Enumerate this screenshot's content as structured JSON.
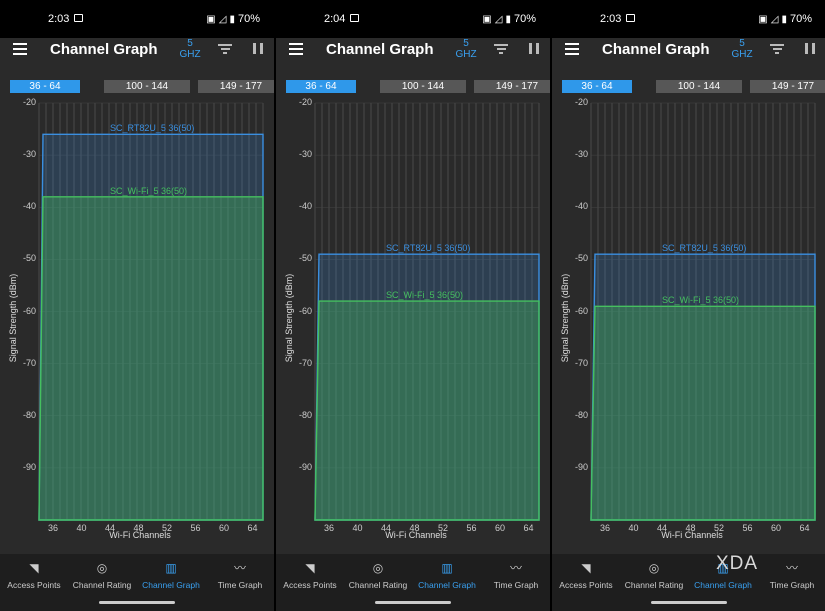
{
  "panels": [
    {
      "status": {
        "time": "2:03",
        "battery": "70%"
      },
      "appbar": {
        "title": "Channel Graph",
        "band_value": "5",
        "band_unit": "GHZ"
      },
      "tabs": [
        {
          "label": "36 - 64",
          "active": true
        },
        {
          "label": "100 - 144",
          "active": false
        },
        {
          "label": "149 - 177",
          "active": false
        }
      ],
      "chart_data": {
        "type": "area",
        "xlabel": "Wi-Fi Channels",
        "ylabel": "Signal Strength (dBm)",
        "x_ticks": [
          "36",
          "40",
          "44",
          "48",
          "52",
          "56",
          "60",
          "64"
        ],
        "y_ticks": [
          "-20",
          "-30",
          "-40",
          "-50",
          "-60",
          "-70",
          "-80",
          "-90"
        ],
        "ylim": [
          -100,
          -20
        ],
        "series": [
          {
            "name": "SC_RT82U_5 36(50)",
            "value": -26,
            "color": "#3a8fe0"
          },
          {
            "name": "SC_Wi-Fi_5 36(50)",
            "value": -38,
            "color": "#45c05f"
          }
        ]
      },
      "nav": [
        {
          "label": "Access Points",
          "icon": "wifi-icon",
          "active": false
        },
        {
          "label": "Channel Rating",
          "icon": "signal-rating-icon",
          "active": false
        },
        {
          "label": "Channel Graph",
          "icon": "bar-chart-icon",
          "active": true
        },
        {
          "label": "Time Graph",
          "icon": "line-graph-icon",
          "active": false
        }
      ]
    },
    {
      "status": {
        "time": "2:04",
        "battery": "70%"
      },
      "appbar": {
        "title": "Channel Graph",
        "band_value": "5",
        "band_unit": "GHZ"
      },
      "tabs": [
        {
          "label": "36 - 64",
          "active": true
        },
        {
          "label": "100 - 144",
          "active": false
        },
        {
          "label": "149 - 177",
          "active": false
        }
      ],
      "chart_data": {
        "type": "area",
        "xlabel": "Wi-Fi Channels",
        "ylabel": "Signal Strength (dBm)",
        "x_ticks": [
          "36",
          "40",
          "44",
          "48",
          "52",
          "56",
          "60",
          "64"
        ],
        "y_ticks": [
          "-20",
          "-30",
          "-40",
          "-50",
          "-60",
          "-70",
          "-80",
          "-90"
        ],
        "ylim": [
          -100,
          -20
        ],
        "series": [
          {
            "name": "SC_RT82U_5 36(50)",
            "value": -49,
            "color": "#3a8fe0"
          },
          {
            "name": "SC_Wi-Fi_5 36(50)",
            "value": -58,
            "color": "#45c05f"
          }
        ]
      },
      "nav": [
        {
          "label": "Access Points",
          "icon": "wifi-icon",
          "active": false
        },
        {
          "label": "Channel Rating",
          "icon": "signal-rating-icon",
          "active": false
        },
        {
          "label": "Channel Graph",
          "icon": "bar-chart-icon",
          "active": true
        },
        {
          "label": "Time Graph",
          "icon": "line-graph-icon",
          "active": false
        }
      ]
    },
    {
      "status": {
        "time": "2:03",
        "battery": "70%"
      },
      "appbar": {
        "title": "Channel Graph",
        "band_value": "5",
        "band_unit": "GHZ"
      },
      "tabs": [
        {
          "label": "36 - 64",
          "active": true
        },
        {
          "label": "100 - 144",
          "active": false
        },
        {
          "label": "149 - 177",
          "active": false
        }
      ],
      "chart_data": {
        "type": "area",
        "xlabel": "Wi-Fi Channels",
        "ylabel": "Signal Strength (dBm)",
        "x_ticks": [
          "36",
          "40",
          "44",
          "48",
          "52",
          "56",
          "60",
          "64"
        ],
        "y_ticks": [
          "-20",
          "-30",
          "-40",
          "-50",
          "-60",
          "-70",
          "-80",
          "-90"
        ],
        "ylim": [
          -100,
          -20
        ],
        "series": [
          {
            "name": "SC_RT82U_5 36(50)",
            "value": -49,
            "color": "#3a8fe0"
          },
          {
            "name": "SC_Wi-Fi_5 36(50)",
            "value": -59,
            "color": "#45c05f"
          }
        ]
      },
      "nav": [
        {
          "label": "Access Points",
          "icon": "wifi-icon",
          "active": false
        },
        {
          "label": "Channel Rating",
          "icon": "signal-rating-icon",
          "active": false
        },
        {
          "label": "Channel Graph",
          "icon": "bar-chart-icon",
          "active": true
        },
        {
          "label": "Time Graph",
          "icon": "line-graph-icon",
          "active": false
        }
      ]
    }
  ],
  "watermark": "XDA"
}
